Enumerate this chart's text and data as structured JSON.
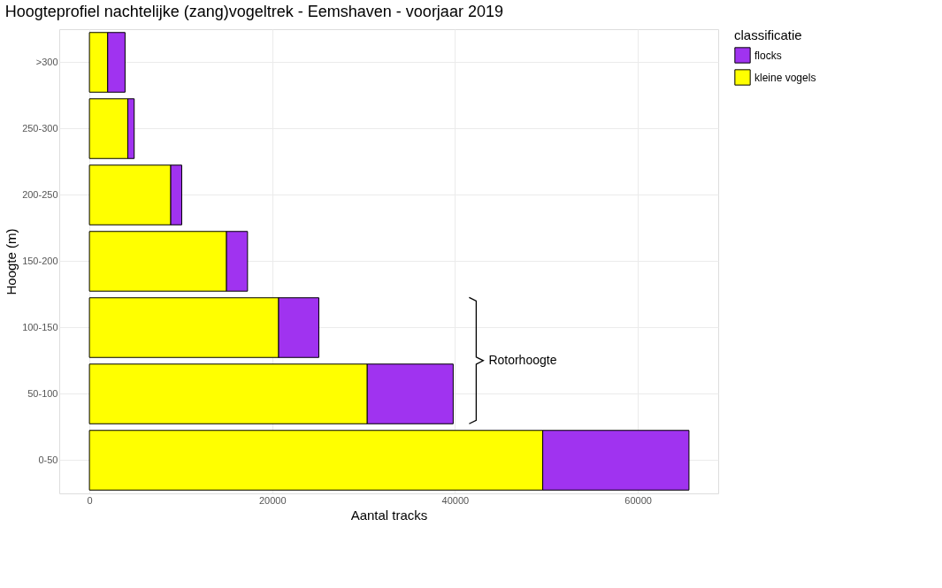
{
  "chart_data": {
    "type": "bar",
    "orientation": "horizontal",
    "stacked": true,
    "title": "Hoogteprofiel nachtelijke (zang)vogeltrek - Eemshaven - voorjaar 2019",
    "xlabel": "Aantal tracks",
    "ylabel": "Hoogte (m)",
    "legend_title": "classificatie",
    "categories": [
      ">300",
      "250-300",
      "200-250",
      "150-200",
      "100-150",
      "50-100",
      "0-50"
    ],
    "series": [
      {
        "name": "kleine vogels",
        "color": "#ffff00",
        "values": [
          2000,
          4200,
          8900,
          15000,
          20700,
          30400,
          49600
        ]
      },
      {
        "name": "flocks",
        "color": "#a033f0",
        "values": [
          1900,
          700,
          1200,
          2300,
          4400,
          9400,
          16000
        ]
      }
    ],
    "xlim": [
      -3300,
      68800
    ],
    "xticks": [
      0,
      20000,
      40000,
      60000
    ],
    "grid": true,
    "legend": "right",
    "annotations": [
      "Rotorhoogte"
    ]
  }
}
